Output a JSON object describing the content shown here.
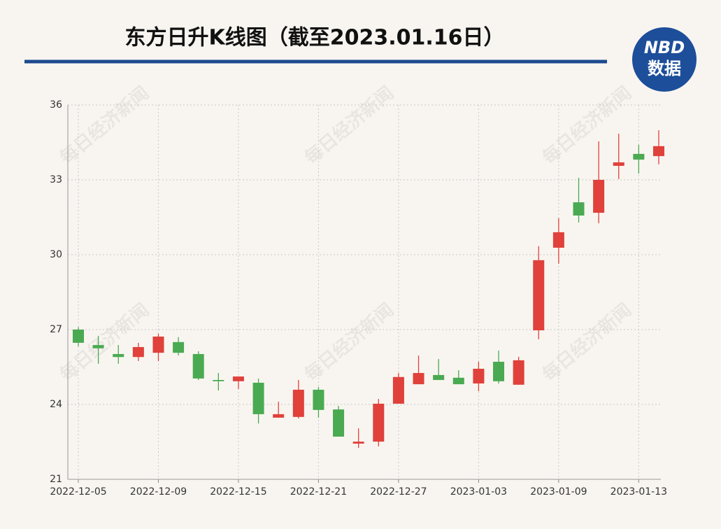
{
  "chart_data": {
    "type": "candlestick",
    "title": "东方日升K线图（截至2023.01.16日）",
    "categories": [
      "2022-12-05",
      null,
      null,
      null,
      "2022-12-09",
      null,
      null,
      null,
      "2022-12-15",
      null,
      null,
      null,
      "2022-12-21",
      null,
      null,
      null,
      "2022-12-27",
      null,
      null,
      null,
      "2023-01-03",
      null,
      null,
      null,
      "2023-01-09",
      null,
      null,
      null,
      "2023-01-13",
      null
    ],
    "open": [
      27.0,
      26.38,
      26.02,
      25.9,
      26.07,
      26.5,
      26.02,
      24.98,
      24.93,
      24.87,
      23.47,
      23.5,
      24.59,
      23.8,
      22.43,
      22.51,
      24.03,
      24.81,
      25.18,
      25.07,
      24.84,
      25.71,
      24.79,
      26.97,
      30.28,
      32.1,
      31.68,
      33.56,
      34.04,
      33.95
    ],
    "high": [
      27.1,
      26.75,
      26.38,
      26.47,
      26.83,
      26.7,
      26.13,
      25.26,
      25.12,
      25.04,
      24.11,
      24.98,
      24.7,
      23.94,
      23.04,
      24.22,
      25.26,
      25.96,
      25.82,
      25.37,
      25.71,
      26.16,
      25.91,
      30.34,
      31.46,
      33.08,
      34.54,
      34.85,
      34.4,
      34.99
    ],
    "low": [
      26.33,
      25.63,
      25.63,
      25.74,
      25.74,
      25.96,
      24.98,
      24.56,
      24.62,
      23.24,
      23.47,
      23.44,
      23.47,
      22.71,
      22.26,
      22.32,
      24.03,
      24.81,
      24.98,
      24.81,
      24.53,
      24.84,
      24.79,
      26.61,
      29.64,
      31.29,
      31.26,
      33.03,
      33.25,
      33.62
    ],
    "close": [
      26.47,
      26.25,
      25.9,
      26.3,
      26.72,
      26.07,
      25.04,
      24.93,
      25.12,
      23.61,
      23.61,
      24.59,
      23.78,
      22.71,
      22.51,
      24.03,
      25.1,
      25.26,
      24.98,
      24.81,
      25.43,
      24.93,
      25.77,
      29.78,
      30.9,
      31.57,
      33.0,
      33.7,
      33.81,
      34.35
    ],
    "up_color": "#e0413b",
    "down_color": "#4aaa52",
    "ylim": [
      21,
      36
    ],
    "yticks": [
      21,
      24,
      27,
      30,
      33,
      36
    ],
    "grid": true
  },
  "logo": {
    "top": "NBD",
    "bottom": "数据"
  },
  "watermark": "每日经济新闻"
}
